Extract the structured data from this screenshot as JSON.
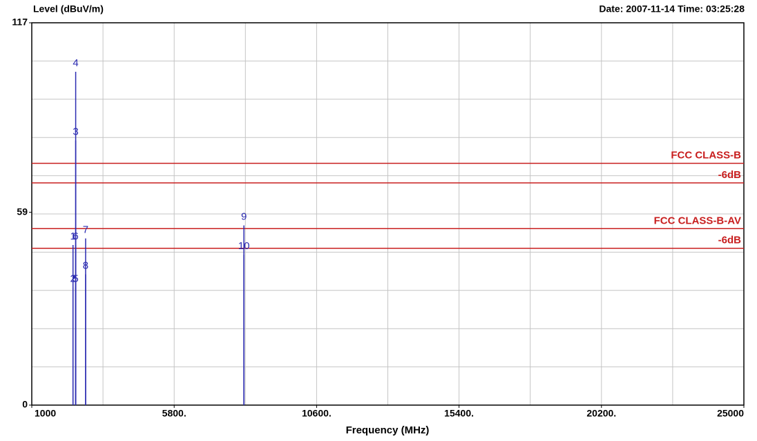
{
  "chart_data": {
    "type": "spike",
    "title": "Level (dBuV/m)",
    "subtitle": "Date: 2007-11-14  Time: 03:25:28",
    "x_label": "Frequency (MHz)",
    "xlim": [
      1000,
      25000
    ],
    "ylim": [
      0,
      117
    ],
    "xticks": [
      1000,
      {
        "value": 5800,
        "label": "5800."
      },
      {
        "value": 10600,
        "label": "10600."
      },
      {
        "value": 15400,
        "label": "15400."
      },
      {
        "value": 20200,
        "label": "20200."
      },
      25000
    ],
    "yticks": [
      0,
      59,
      117
    ],
    "xgrid": [
      1000,
      3400,
      5800,
      8200,
      10600,
      13000,
      15400,
      17800,
      20200,
      22600,
      25000
    ],
    "ygrid": [
      0,
      11.7,
      23.4,
      35.1,
      46.8,
      58.5,
      70.2,
      81.9,
      93.6,
      105.3,
      117
    ],
    "grid": true,
    "color": "#2a2ab0",
    "limit_color": "#c81e1e",
    "limits": [
      {
        "name": "FCC CLASS-B",
        "value": 74
      },
      {
        "name": "-6dB",
        "value": 68
      },
      {
        "name": "FCC CLASS-B-AV",
        "value": 54
      },
      {
        "name": "-6dB",
        "value": 48
      }
    ],
    "points": [
      {
        "label": "1",
        "x": 2390,
        "value": 49
      },
      {
        "label": "2",
        "x": 2390,
        "value": 36
      },
      {
        "label": "3",
        "x": 2480,
        "value": 81
      },
      {
        "label": "4",
        "x": 2480,
        "value": 102
      },
      {
        "label": "5",
        "x": 2480,
        "value": 36
      },
      {
        "label": "6",
        "x": 2480,
        "value": 49
      },
      {
        "label": "7",
        "x": 2815,
        "value": 51
      },
      {
        "label": "8",
        "x": 2815,
        "value": 40
      },
      {
        "label": "9",
        "x": 8150,
        "value": 55
      },
      {
        "label": "10",
        "x": 8150,
        "value": 46
      }
    ]
  }
}
